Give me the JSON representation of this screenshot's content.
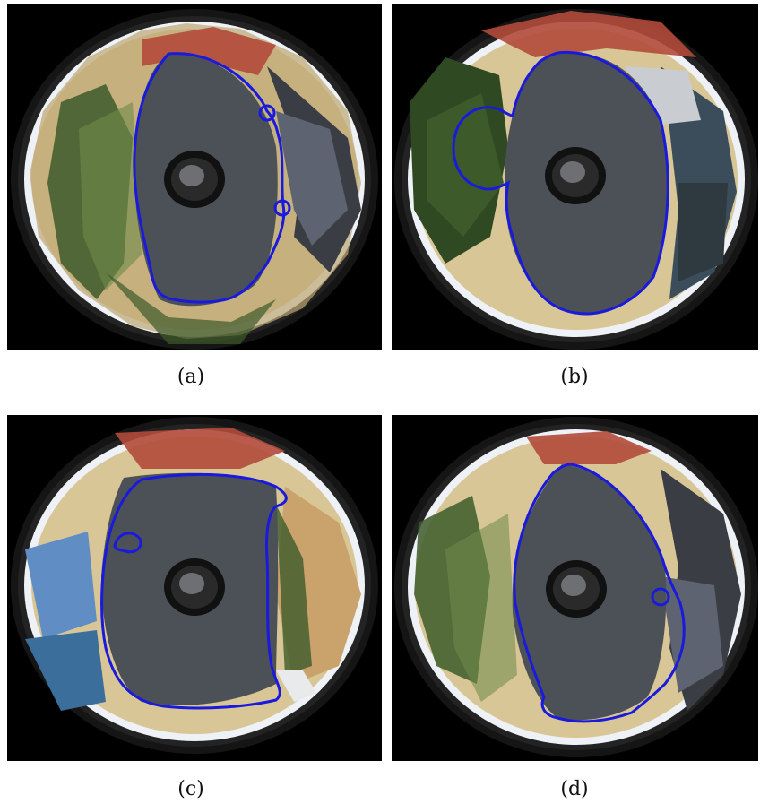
{
  "figure": {
    "panels": [
      {
        "caption": "(a)",
        "icon": "fisheye-image-ground-segmentation"
      },
      {
        "caption": "(b)",
        "icon": "fisheye-image-ground-segmentation"
      },
      {
        "caption": "(c)",
        "icon": "fisheye-image-ground-segmentation"
      },
      {
        "caption": "(d)",
        "icon": "fisheye-image-ground-segmentation"
      }
    ],
    "colors": {
      "contour": "#1a1adc",
      "ground": "#4c5057",
      "background": "#000000",
      "lens_ring": "#141414",
      "sky": "#eef1f5",
      "building": "#d9c38e",
      "roof": "#b34a3a",
      "foliage": "#3d5a2a"
    }
  }
}
